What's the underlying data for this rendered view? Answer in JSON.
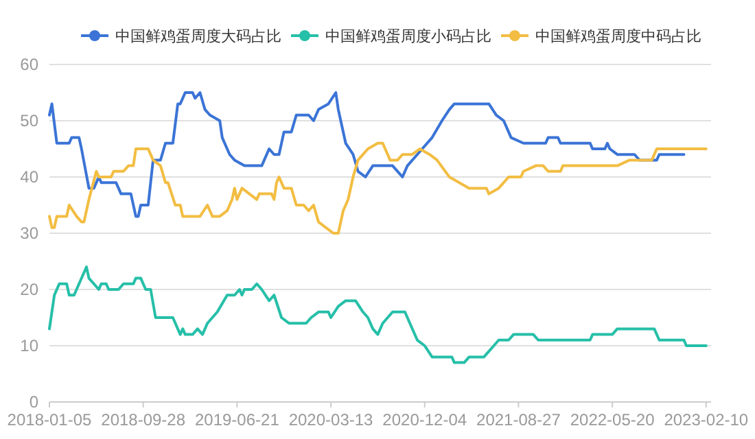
{
  "chart_data": {
    "type": "line",
    "legend": "top right",
    "grid": "y",
    "xlim": [
      "2018-01-05",
      "2023-02-24"
    ],
    "ylim": [
      0,
      60
    ],
    "yticks": [
      0,
      10,
      20,
      30,
      40,
      50,
      60
    ],
    "xticks": [
      {
        "value": "2018-01-05",
        "label": "2018-01-05"
      },
      {
        "value": "2018-09-28",
        "label": "2018-09-28"
      },
      {
        "value": "2019-06-21",
        "label": "2019-06-21"
      },
      {
        "value": "2020-03-13",
        "label": "2020-03-13"
      },
      {
        "value": "2020-12-04",
        "label": "2020-12-04"
      },
      {
        "value": "2021-08-27",
        "label": "2021-08-27"
      },
      {
        "value": "2022-05-20",
        "label": "2022-05-20"
      },
      {
        "value": "2023-02-10",
        "label": "2023-02-10"
      }
    ],
    "series": [
      {
        "name": "中国鲜鸡蛋周度大码占比",
        "color": "#3b74d6",
        "x": [
          "2018-01-05",
          "2018-01-12",
          "2018-01-26",
          "2018-03-02",
          "2018-03-09",
          "2018-03-30",
          "2018-04-06",
          "2018-04-27",
          "2018-05-11",
          "2018-05-25",
          "2018-06-01",
          "2018-07-13",
          "2018-07-27",
          "2018-08-24",
          "2018-09-07",
          "2018-09-14",
          "2018-09-21",
          "2018-10-12",
          "2018-10-26",
          "2018-11-16",
          "2018-11-30",
          "2018-12-21",
          "2019-01-04",
          "2019-01-11",
          "2019-01-25",
          "2019-02-15",
          "2019-02-22",
          "2019-03-08",
          "2019-03-22",
          "2019-04-05",
          "2019-05-03",
          "2019-05-10",
          "2019-05-31",
          "2019-06-14",
          "2019-07-12",
          "2019-08-30",
          "2019-09-20",
          "2019-10-04",
          "2019-10-18",
          "2019-11-01",
          "2019-11-22",
          "2019-12-06",
          "2020-01-10",
          "2020-01-24",
          "2020-02-07",
          "2020-03-06",
          "2020-03-27",
          "2020-04-03",
          "2020-04-24",
          "2020-05-15",
          "2020-05-29",
          "2020-06-19",
          "2020-07-10",
          "2020-09-04",
          "2020-10-02",
          "2020-10-16",
          "2020-11-13",
          "2020-11-27",
          "2020-12-25",
          "2021-01-22",
          "2021-02-12",
          "2021-02-26",
          "2021-06-04",
          "2021-06-25",
          "2021-07-16",
          "2021-08-06",
          "2021-09-10",
          "2021-11-12",
          "2021-11-19",
          "2021-12-17",
          "2021-12-24",
          "2022-03-18",
          "2022-03-25",
          "2022-04-29",
          "2022-05-06",
          "2022-05-13",
          "2022-06-03",
          "2022-07-22",
          "2022-08-05",
          "2022-09-23",
          "2022-09-30",
          "2022-12-09"
        ],
        "values": [
          51,
          53,
          46,
          46,
          47,
          47,
          45,
          38,
          38,
          40,
          39,
          39,
          37,
          37,
          33,
          33,
          35,
          35,
          43,
          43,
          46,
          46,
          53,
          53,
          55,
          55,
          54,
          55,
          52,
          51,
          50,
          47,
          44,
          43,
          42,
          42,
          45,
          44,
          44,
          48,
          48,
          51,
          51,
          50,
          52,
          53,
          55,
          52,
          46,
          44,
          41,
          40,
          42,
          42,
          40,
          42,
          44,
          45,
          47,
          50,
          52,
          53,
          53,
          51,
          50,
          47,
          46,
          46,
          47,
          47,
          46,
          46,
          45,
          45,
          46,
          45,
          44,
          44,
          43,
          43,
          44,
          44
        ]
      },
      {
        "name": "中国鲜鸡蛋周度小码占比",
        "color": "#26bfa8",
        "x": [
          "2018-01-05",
          "2018-01-19",
          "2018-02-02",
          "2018-02-23",
          "2018-03-02",
          "2018-03-16",
          "2018-03-30",
          "2018-04-20",
          "2018-04-27",
          "2018-05-11",
          "2018-05-25",
          "2018-06-01",
          "2018-06-15",
          "2018-06-22",
          "2018-07-20",
          "2018-08-03",
          "2018-08-31",
          "2018-09-07",
          "2018-09-21",
          "2018-10-05",
          "2018-10-19",
          "2018-11-02",
          "2018-12-21",
          "2019-01-11",
          "2019-01-18",
          "2019-01-25",
          "2019-02-15",
          "2019-03-01",
          "2019-03-15",
          "2019-03-29",
          "2019-04-12",
          "2019-04-26",
          "2019-05-24",
          "2019-06-14",
          "2019-06-28",
          "2019-07-05",
          "2019-07-12",
          "2019-08-02",
          "2019-08-16",
          "2019-08-30",
          "2019-09-20",
          "2019-10-04",
          "2019-10-25",
          "2019-11-15",
          "2020-01-03",
          "2020-01-17",
          "2020-02-07",
          "2020-03-06",
          "2020-03-13",
          "2020-04-03",
          "2020-04-24",
          "2020-05-22",
          "2020-06-12",
          "2020-06-26",
          "2020-07-10",
          "2020-07-24",
          "2020-08-07",
          "2020-09-04",
          "2020-10-09",
          "2020-10-23",
          "2020-11-13",
          "2020-12-04",
          "2020-12-25",
          "2021-02-19",
          "2021-02-26",
          "2021-03-26",
          "2021-04-09",
          "2021-05-21",
          "2021-06-18",
          "2021-07-02",
          "2021-07-30",
          "2021-08-13",
          "2021-10-08",
          "2021-10-22",
          "2022-03-18",
          "2022-03-25",
          "2022-05-20",
          "2022-06-03",
          "2022-09-16",
          "2022-09-30",
          "2022-12-09",
          "2022-12-16",
          "2023-02-10"
        ],
        "values": [
          13,
          19,
          21,
          21,
          19,
          19,
          21,
          24,
          22,
          21,
          20,
          21,
          21,
          20,
          20,
          21,
          21,
          22,
          22,
          20,
          20,
          15,
          15,
          12,
          13,
          12,
          12,
          13,
          12,
          14,
          15,
          16,
          19,
          19,
          20,
          19,
          20,
          20,
          21,
          20,
          18,
          19,
          15,
          14,
          14,
          15,
          16,
          16,
          15,
          17,
          18,
          18,
          16,
          15,
          13,
          12,
          14,
          16,
          16,
          14,
          11,
          10,
          8,
          8,
          7,
          7,
          8,
          8,
          10,
          11,
          11,
          12,
          12,
          11,
          11,
          12,
          12,
          13,
          13,
          11,
          11,
          10,
          10
        ]
      },
      {
        "name": "中国鲜鸡蛋周度中码占比",
        "color": "#f2bd42",
        "x": [
          "2018-01-05",
          "2018-01-12",
          "2018-01-19",
          "2018-01-26",
          "2018-02-23",
          "2018-03-02",
          "2018-03-23",
          "2018-04-06",
          "2018-04-13",
          "2018-04-27",
          "2018-05-18",
          "2018-05-25",
          "2018-06-29",
          "2018-07-06",
          "2018-08-03",
          "2018-08-17",
          "2018-08-31",
          "2018-09-07",
          "2018-10-12",
          "2018-10-26",
          "2018-11-16",
          "2018-11-30",
          "2018-12-07",
          "2018-12-28",
          "2019-01-11",
          "2019-01-18",
          "2019-03-08",
          "2019-03-29",
          "2019-04-12",
          "2019-05-03",
          "2019-05-24",
          "2019-06-07",
          "2019-06-14",
          "2019-06-21",
          "2019-07-05",
          "2019-07-26",
          "2019-08-16",
          "2019-08-23",
          "2019-09-27",
          "2019-10-04",
          "2019-10-11",
          "2019-10-18",
          "2019-11-01",
          "2019-11-22",
          "2019-12-06",
          "2019-12-27",
          "2020-01-10",
          "2020-01-24",
          "2020-02-07",
          "2020-02-28",
          "2020-03-20",
          "2020-04-03",
          "2020-04-17",
          "2020-05-01",
          "2020-05-15",
          "2020-05-29",
          "2020-06-26",
          "2020-07-24",
          "2020-08-07",
          "2020-08-28",
          "2020-09-18",
          "2020-10-02",
          "2020-10-30",
          "2020-11-20",
          "2020-12-18",
          "2021-01-08",
          "2021-02-12",
          "2021-03-12",
          "2021-04-09",
          "2021-05-28",
          "2021-06-04",
          "2021-07-02",
          "2021-07-30",
          "2021-09-03",
          "2021-09-10",
          "2021-10-15",
          "2021-11-05",
          "2021-11-19",
          "2021-12-24",
          "2021-12-31",
          "2022-04-29",
          "2022-06-03",
          "2022-07-08",
          "2022-09-09",
          "2022-09-23",
          "2023-02-10"
        ],
        "values": [
          33,
          31,
          31,
          33,
          33,
          35,
          33,
          32,
          32,
          36,
          41,
          40,
          40,
          41,
          41,
          42,
          42,
          45,
          45,
          43,
          42,
          39,
          39,
          35,
          35,
          33,
          33,
          35,
          33,
          33,
          34,
          36,
          38,
          36,
          38,
          37,
          36,
          37,
          37,
          36,
          39,
          40,
          38,
          38,
          35,
          35,
          34,
          35,
          32,
          31,
          30,
          30,
          34,
          36,
          40,
          43,
          45,
          46,
          46,
          43,
          43,
          44,
          44,
          45,
          44,
          43,
          40,
          39,
          38,
          38,
          37,
          38,
          40,
          40,
          41,
          42,
          42,
          41,
          41,
          42,
          42,
          42,
          43,
          43,
          45,
          45
        ]
      }
    ]
  }
}
